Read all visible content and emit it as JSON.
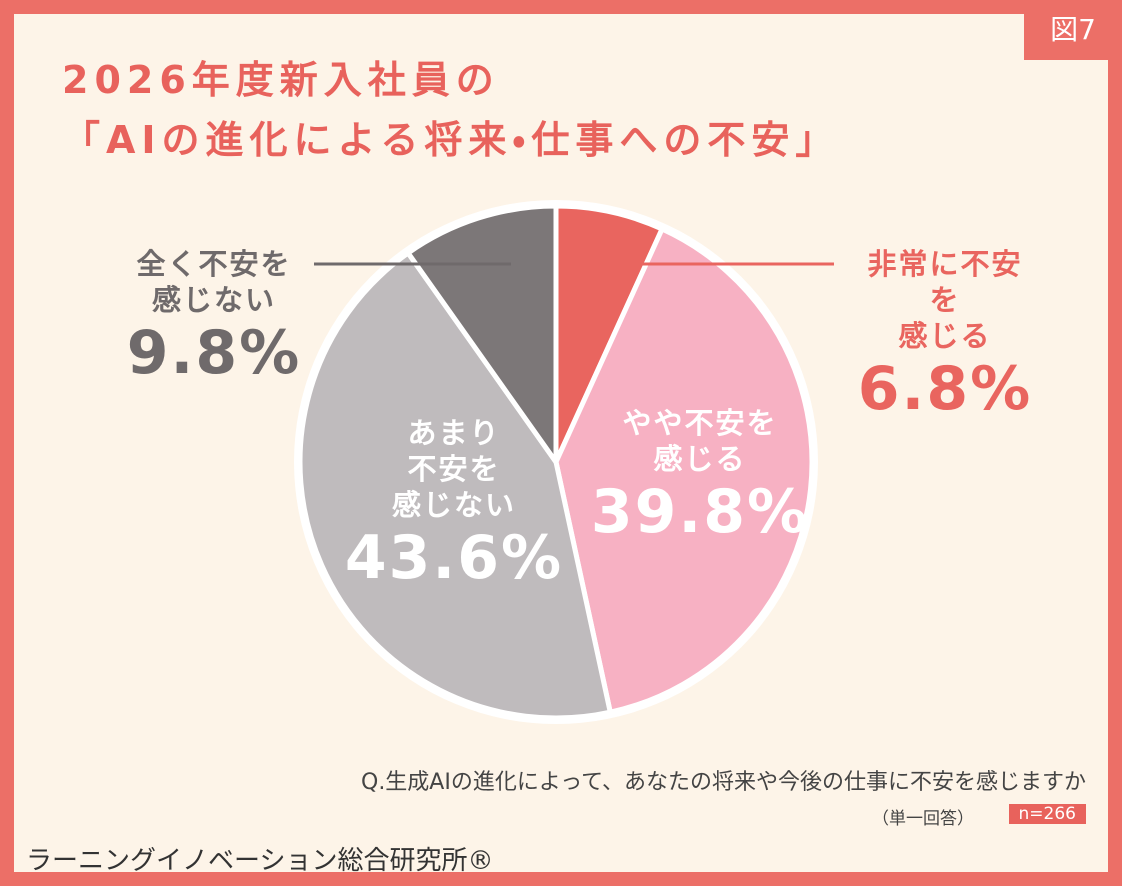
{
  "chart_data": {
    "type": "pie",
    "figure_label": "図7",
    "title": "2026年度新入社員の\n「AIの進化による将来・仕事への不安」",
    "categories": [
      "非常に不安を\n感じる",
      "やや不安を\n感じる",
      "あまり\n不安を\n感じない",
      "全く不安を\n感じない"
    ],
    "values": [
      6.8,
      39.8,
      43.6,
      9.8
    ],
    "value_labels": [
      "6.8%",
      "39.8%",
      "43.6%",
      "9.8%"
    ],
    "colors": [
      "#e9655f",
      "#f7b1c3",
      "#bfbbbd",
      "#7c7778"
    ],
    "question": "Q.生成AIの進化によって、あなたの将来や今後の仕事に不安を感じますか",
    "note": "（単一回答）",
    "sample": "n=266",
    "source": "ラーニングイノベーション総合研究所®"
  }
}
